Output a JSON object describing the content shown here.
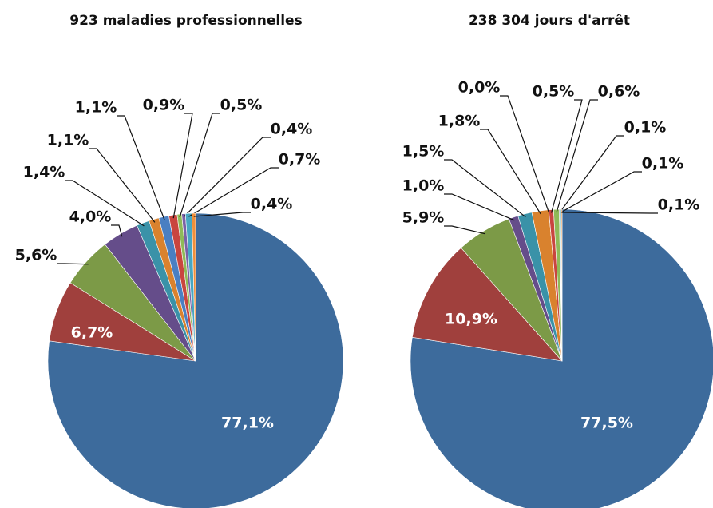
{
  "chart_data": [
    {
      "type": "pie",
      "title": "923 maladies professionnelles",
      "values": [
        77.1,
        6.7,
        5.6,
        4.0,
        1.4,
        1.1,
        1.1,
        0.9,
        0.5,
        0.4,
        0.7,
        0.4
      ],
      "value_labels": [
        "77,1%",
        "6,7%",
        "5,6%",
        "4,0%",
        "1,4%",
        "1,1%",
        "1,1%",
        "0,9%",
        "0,5%",
        "0,4%",
        "0,7%",
        "0,4%"
      ],
      "colors": [
        "#3d6b9c",
        "#a0403d",
        "#7c9a47",
        "#654d8a",
        "#3a92a8",
        "#d9822e",
        "#4a7fc2",
        "#c9453f",
        "#8fba58",
        "#7b61a6",
        "#47a7c2",
        "#f08f3a"
      ]
    },
    {
      "type": "pie",
      "title": "238 304 jours d'arrêt",
      "values": [
        77.5,
        10.9,
        5.9,
        1.0,
        1.5,
        1.8,
        0.0,
        0.5,
        0.6,
        0.1,
        0.1,
        0.1
      ],
      "value_labels": [
        "77,5%",
        "10,9%",
        "5,9%",
        "1,0%",
        "1,5%",
        "1,8%",
        "0,0%",
        "0,5%",
        "0,6%",
        "0,1%",
        "0,1%",
        "0,1%"
      ],
      "colors": [
        "#3d6b9c",
        "#a0403d",
        "#7c9a47",
        "#654d8a",
        "#3a92a8",
        "#d9822e",
        "#4a7fc2",
        "#c9453f",
        "#8fba58",
        "#7b61a6",
        "#47a7c2",
        "#f08f3a"
      ]
    }
  ]
}
